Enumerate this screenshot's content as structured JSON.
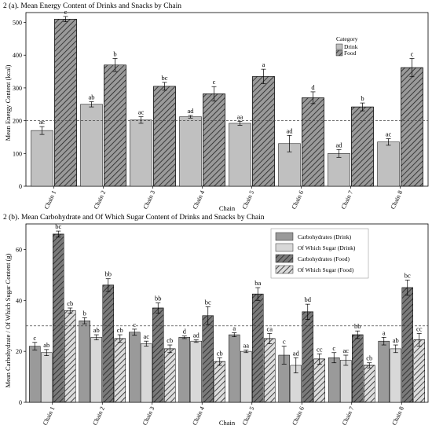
{
  "chart_data": [
    {
      "type": "bar",
      "title": "2 (a). Mean Energy Content of Drinks and Snacks by Chain",
      "xlabel": "Chain",
      "ylabel": "Mean Energy Content (kcal)",
      "ylim": [
        0,
        530
      ],
      "yticks": [
        0,
        100,
        200,
        300,
        400,
        500
      ],
      "reference_line": 200,
      "categories": [
        "Chain 1",
        "Chain 2",
        "Chain 3",
        "Chain 4",
        "Chain 5",
        "Chain 6",
        "Chain 7",
        "Chain 8"
      ],
      "legend": {
        "title": "Category",
        "placement": "top-right"
      },
      "series": [
        {
          "name": "Drink",
          "fill": "#c0c0c0",
          "hatch": false,
          "values": [
            170,
            250,
            202,
            212,
            192,
            130,
            100,
            135
          ],
          "errors": [
            12,
            8,
            10,
            4,
            6,
            25,
            12,
            10
          ],
          "labels": [
            "ac",
            "ab",
            "ac",
            "ad",
            "aa",
            "ad",
            "ad",
            "ac"
          ]
        },
        {
          "name": "Food",
          "fill": "#9a9a9a",
          "hatch": true,
          "values": [
            510,
            370,
            305,
            282,
            335,
            270,
            242,
            362
          ],
          "errors": [
            8,
            20,
            12,
            22,
            22,
            18,
            12,
            28
          ],
          "labels": [
            "c",
            "b",
            "bc",
            "c",
            "a",
            "d",
            "b",
            "c"
          ]
        }
      ]
    },
    {
      "type": "bar",
      "title": "2 (b). Mean Carbohydrate and Of Which Sugar Content of Drinks and Snacks by Chain",
      "xlabel": "Chain",
      "ylabel": "Mean Carbohydrate / Of Which Sugar Content (g)",
      "ylim": [
        0,
        70
      ],
      "yticks": [
        0,
        20,
        40,
        60
      ],
      "reference_line": 30,
      "categories": [
        "Chain 1",
        "Chain 2",
        "Chain 3",
        "Chain 4",
        "Chain 5",
        "Chain 6",
        "Chain 7",
        "Chain 8"
      ],
      "legend": {
        "placement": "top-right"
      },
      "series": [
        {
          "name": "Carbohydrates (Drink)",
          "fill": "#9a9a9a",
          "hatch": false,
          "values": [
            22,
            32,
            27.5,
            25.5,
            26.5,
            18.5,
            17.5,
            24
          ],
          "errors": [
            1.5,
            1.2,
            1.2,
            0.5,
            0.8,
            3.5,
            2,
            1.5
          ],
          "labels": [
            "c",
            "b",
            "c",
            "d",
            "a",
            "c",
            "c",
            "a"
          ]
        },
        {
          "name": "Of Which Sugar (Drink)",
          "fill": "#d8d8d8",
          "hatch": false,
          "values": [
            19.5,
            25.5,
            23,
            24,
            20,
            14.5,
            16.5,
            21
          ],
          "errors": [
            1.2,
            1,
            1,
            0.5,
            0.5,
            3,
            2,
            1.5
          ],
          "labels": [
            "ab",
            "ab",
            "ac",
            "ad",
            "aa",
            "ad",
            "ac",
            "ab"
          ]
        },
        {
          "name": "Carbohydrates (Food)",
          "fill": "#7a7a7a",
          "hatch": true,
          "values": [
            66,
            46,
            37,
            34,
            42.5,
            35.5,
            26.5,
            45
          ],
          "errors": [
            1.2,
            2.5,
            2,
            3.5,
            2.5,
            3,
            1.5,
            3
          ],
          "labels": [
            "bc",
            "bb",
            "bb",
            "bc",
            "ba",
            "bd",
            "bb",
            "bc"
          ]
        },
        {
          "name": "Of Which Sugar (Food)",
          "fill": "#dcdcdc",
          "hatch": true,
          "values": [
            36,
            25,
            21,
            16,
            25,
            17,
            14.5,
            24.5
          ],
          "errors": [
            1,
            1.5,
            1.5,
            1.5,
            2,
            2,
            1,
            2.5
          ],
          "labels": [
            "cb",
            "cb",
            "cb",
            "cb",
            "ca",
            "cc",
            "cb",
            "cc"
          ]
        }
      ]
    }
  ]
}
